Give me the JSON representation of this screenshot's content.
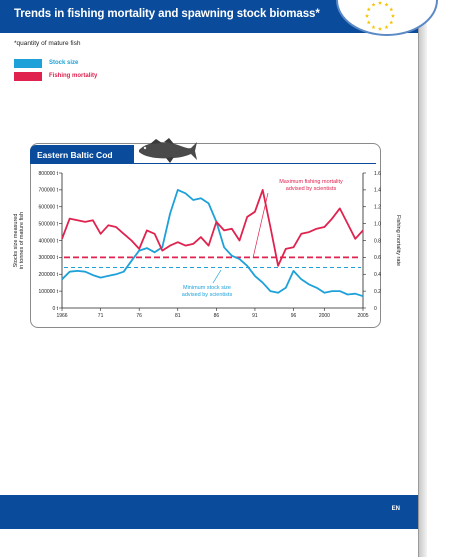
{
  "header": {
    "title": "Trends in fishing mortality and spawning stock biomass*"
  },
  "subtitle": "*quantity of mature fish",
  "legend": [
    {
      "label": "Stock size",
      "color": "#1da1d8"
    },
    {
      "label": "Fishing mortality",
      "color": "#e0224e"
    }
  ],
  "footer": {
    "language": "EN"
  },
  "logo": {
    "icon": "eu-stars-icon",
    "color": "#f5c400"
  },
  "chart_data": {
    "type": "line",
    "title": "Eastern Baltic Cod",
    "icon": "cod-fish-icon",
    "x_ticks": [
      "1966",
      "71",
      "76",
      "81",
      "86",
      "91",
      "96",
      "2000",
      "2005"
    ],
    "x_tick_values": [
      1966,
      1971,
      1976,
      1981,
      1986,
      1991,
      1996,
      2000,
      2005
    ],
    "xlim": [
      1966,
      2005
    ],
    "y_left": {
      "label_line1": "Stocks size measured",
      "label_line2": "in tonnes of mature fish",
      "ylim": [
        0,
        800000
      ],
      "ticks": [
        "0 t",
        "100000 t",
        "200000 t",
        "300000 t",
        "400000 t",
        "500000 t",
        "600000 t",
        "700000 t",
        "800000 t"
      ]
    },
    "y_right": {
      "label": "Fishing mortality rate",
      "ylim": [
        0,
        1.6
      ],
      "ticks": [
        "0",
        "0.2",
        "0.4",
        "0.6",
        "0.8",
        "1.0",
        "1.2",
        "1.4",
        "1.6"
      ]
    },
    "grid": false,
    "series": [
      {
        "name": "Stock size",
        "axis": "left",
        "color": "#1da1d8",
        "x": [
          1966,
          1967,
          1968,
          1969,
          1970,
          1971,
          1972,
          1973,
          1974,
          1975,
          1976,
          1977,
          1978,
          1979,
          1980,
          1981,
          1982,
          1983,
          1984,
          1985,
          1986,
          1987,
          1988,
          1989,
          1990,
          1991,
          1992,
          1993,
          1994,
          1995,
          1996,
          1997,
          1998,
          1999,
          2000,
          2001,
          2002,
          2003,
          2004,
          2005
        ],
        "y": [
          170000,
          215000,
          220000,
          215000,
          195000,
          180000,
          190000,
          200000,
          215000,
          280000,
          340000,
          355000,
          330000,
          360000,
          560000,
          700000,
          680000,
          640000,
          650000,
          620000,
          510000,
          360000,
          310000,
          290000,
          250000,
          190000,
          150000,
          100000,
          90000,
          120000,
          220000,
          170000,
          140000,
          120000,
          90000,
          100000,
          100000,
          80000,
          85000,
          70000
        ]
      },
      {
        "name": "Fishing mortality",
        "axis": "right",
        "color": "#e0224e",
        "x": [
          1966,
          1967,
          1968,
          1969,
          1970,
          1971,
          1972,
          1973,
          1974,
          1975,
          1976,
          1977,
          1978,
          1979,
          1980,
          1981,
          1982,
          1983,
          1984,
          1985,
          1986,
          1987,
          1988,
          1989,
          1990,
          1991,
          1992,
          1993,
          1994,
          1995,
          1996,
          1997,
          1998,
          1999,
          2000,
          2001,
          2002,
          2003,
          2004,
          2005
        ],
        "y": [
          0.82,
          1.06,
          1.04,
          1.02,
          1.04,
          0.88,
          0.98,
          0.96,
          0.88,
          0.8,
          0.7,
          0.92,
          0.88,
          0.68,
          0.74,
          0.78,
          0.74,
          0.76,
          0.84,
          0.74,
          1.02,
          0.92,
          0.94,
          0.8,
          1.08,
          1.14,
          1.4,
          0.96,
          0.5,
          0.7,
          0.72,
          0.88,
          0.9,
          0.94,
          0.96,
          1.06,
          1.18,
          1.0,
          0.82,
          0.92
        ]
      }
    ],
    "reference_lines": [
      {
        "label_line1": "Maximum fishing mortality",
        "label_line2": "advised by scientists",
        "axis": "right",
        "value": 0.6,
        "color": "#e0224e"
      },
      {
        "label_line1": "Minimum stock size",
        "label_line2": "advised by scientists",
        "axis": "left",
        "value": 240000,
        "color": "#1da1d8"
      }
    ]
  }
}
